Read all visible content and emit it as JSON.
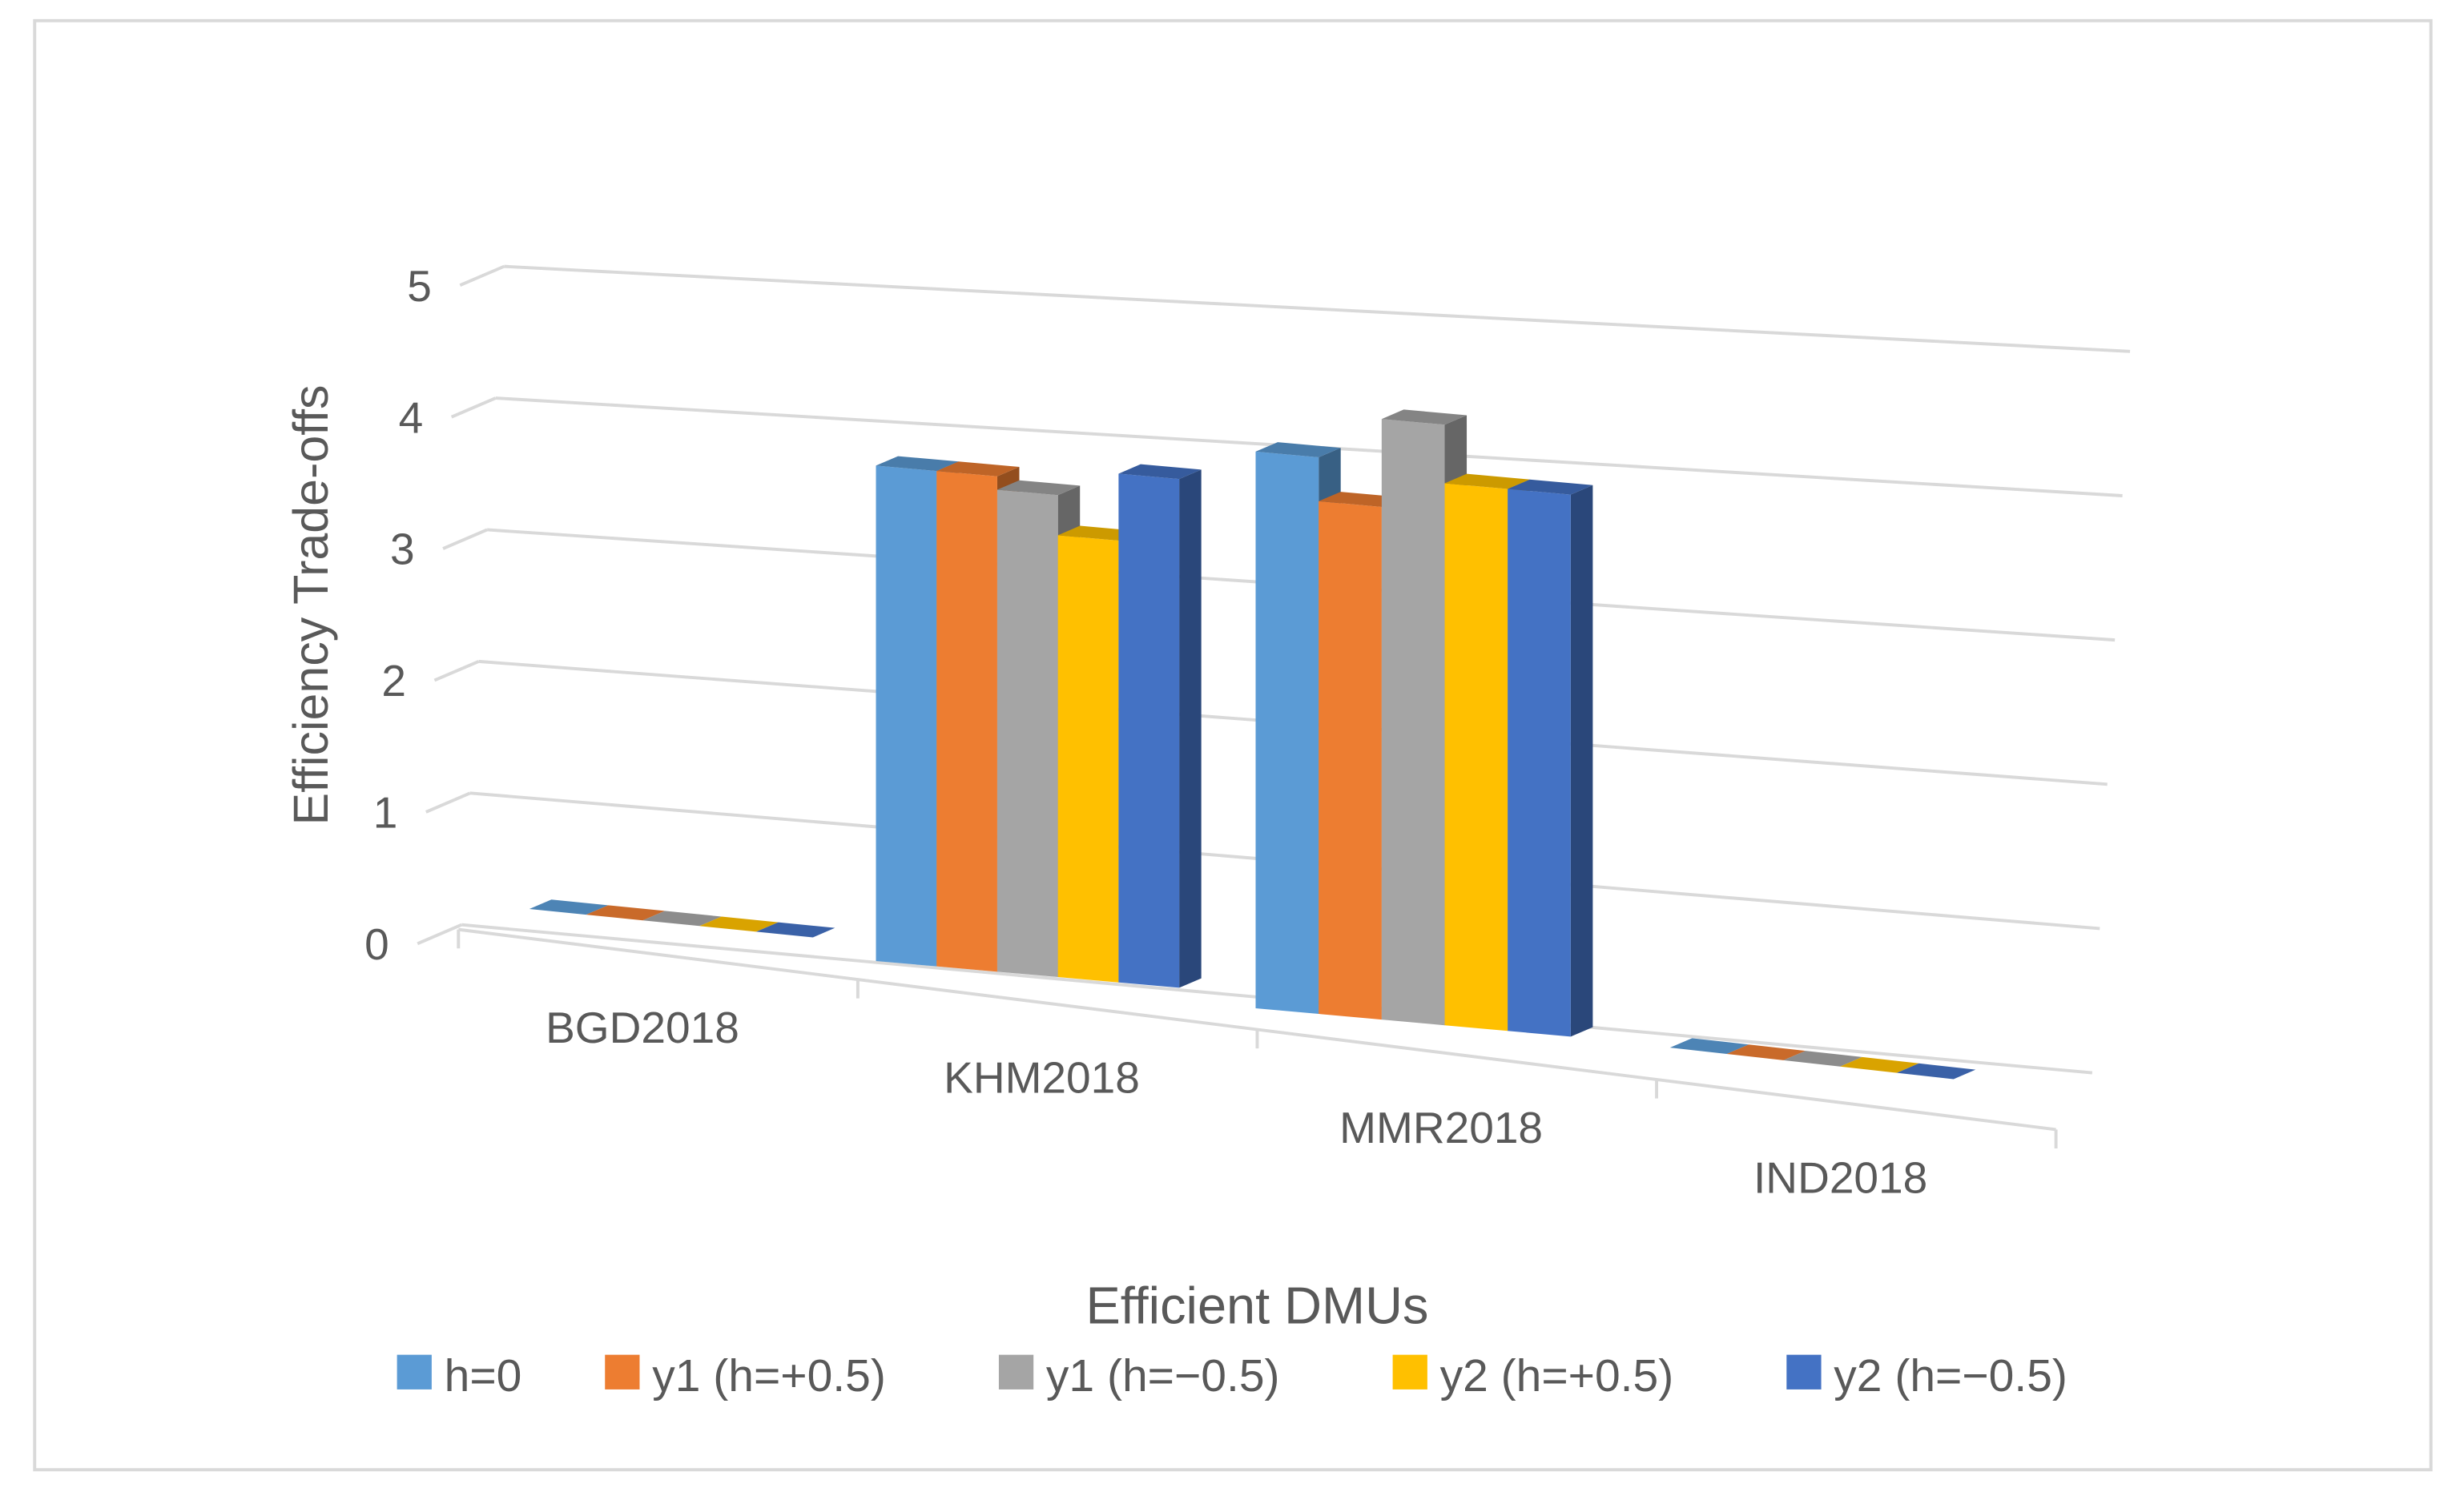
{
  "chart_data": {
    "type": "bar",
    "style": "3d-clustered-column",
    "title": "",
    "xlabel": "Efficient DMUs",
    "ylabel": "Efficiency Trade-offs",
    "ylim": [
      0,
      5
    ],
    "yticks": [
      "0",
      "1",
      "2",
      "3",
      "4",
      "5"
    ],
    "categories": [
      "BGD2018",
      "KHM2018",
      "MMR2018",
      "IND2018"
    ],
    "series": [
      {
        "name": "h=0",
        "color": "#5B9BD5",
        "values": [
          0,
          3.7,
          3.8,
          0
        ]
      },
      {
        "name": "y1 (h=+0.5)",
        "color": "#ED7D31",
        "values": [
          0,
          3.7,
          3.5,
          0
        ]
      },
      {
        "name": "y1 (h=−0.5)",
        "color": "#A5A5A5",
        "values": [
          0,
          3.6,
          4.1,
          0
        ]
      },
      {
        "name": "y2 (h=+0.5)",
        "color": "#FFC000",
        "values": [
          0,
          3.3,
          3.7,
          0
        ]
      },
      {
        "name": "y2 (h=−0.5)",
        "color": "#4472C4",
        "values": [
          0,
          3.8,
          3.7,
          0
        ]
      }
    ],
    "legend_position": "bottom",
    "grid": true
  }
}
